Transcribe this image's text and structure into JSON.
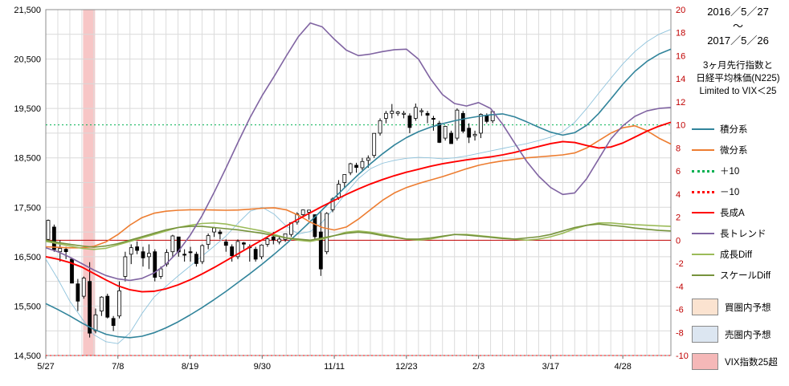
{
  "title_block": {
    "date_from": "2016／5／27",
    "tilde": "～",
    "date_to": "2017／5／26",
    "subtitle_line1": "3ヶ月先行指数と",
    "subtitle_line2": "日経平均株価(N225)",
    "subtitle_line3": "Limited to  VIX＜25"
  },
  "legend": {
    "line_items": [
      {
        "label": "積分系",
        "color": "#31849b",
        "style": "solid"
      },
      {
        "label": "微分系",
        "color": "#ed7d31",
        "style": "solid"
      },
      {
        "label": "＋10",
        "color": "#00b050",
        "style": "dotted"
      },
      {
        "label": "－10",
        "color": "#ff0000",
        "style": "dotted"
      },
      {
        "label": "長成A",
        "color": "#ff0000",
        "style": "solid"
      },
      {
        "label": "長トレンド",
        "color": "#8064a2",
        "style": "solid"
      },
      {
        "label": "成長Diff",
        "color": "#9bbb59",
        "style": "solid"
      },
      {
        "label": "スケールDiff",
        "color": "#76933c",
        "style": "solid"
      }
    ],
    "box_items": [
      {
        "label": "買圏内予想",
        "fill": "#fbe3d0"
      },
      {
        "label": "売圏内予想",
        "fill": "#dce6f1"
      },
      {
        "label": "VIX指数25超",
        "fill": "#f5b8b8"
      }
    ]
  },
  "chart_data": {
    "type": "line+candlestick",
    "title": "3ヶ月先行指数と日経平均株価(N225)",
    "subtitle": "Limited to  VIX＜25",
    "period_from": "2016／5／27",
    "period_to": "2017／5／26",
    "left_axis": {
      "min": 14500,
      "max": 21500,
      "grid_step": 500,
      "label_step": 1000,
      "labels": [
        "21,500",
        "20,500",
        "19,500",
        "18,500",
        "17,500",
        "16,500",
        "15,500",
        "14,500"
      ]
    },
    "right_axis": {
      "min": -10,
      "max": 20,
      "label_step": 2,
      "color": "#c00000",
      "labels": [
        "20",
        "18",
        "16",
        "14",
        "12",
        "10",
        "8",
        "6",
        "4",
        "2",
        "0",
        "-2",
        "-4",
        "-6",
        "-8",
        "-10"
      ]
    },
    "x_axis": {
      "weeks_total": 52,
      "ticks": [
        {
          "week": 0,
          "label": "5/27"
        },
        {
          "week": 6,
          "label": "7/8"
        },
        {
          "week": 12,
          "label": "8/19"
        },
        {
          "week": 18,
          "label": "9/30"
        },
        {
          "week": 24,
          "label": "11/11"
        },
        {
          "week": 30,
          "label": "12/23"
        },
        {
          "week": 36,
          "label": "2/3"
        },
        {
          "week": 42,
          "label": "3/17"
        },
        {
          "week": 48,
          "label": "4/28"
        }
      ]
    },
    "ref_lines": [
      {
        "label": "0",
        "value": 0,
        "color": "#c00000",
        "dotted": false
      },
      {
        "label": "＋10",
        "value": 10,
        "color": "#00b050",
        "dotted": true
      },
      {
        "label": "－10",
        "value": -10,
        "color": "#ff0000",
        "dotted": true
      }
    ],
    "vix_band": {
      "label": "VIX指数25超",
      "from_week": 3.1,
      "to_week": 4.1,
      "color": "#f5b8b8"
    },
    "candles": {
      "name": "日経平均株価(N225)",
      "axis": "left",
      "start_week": 0.2,
      "week_step": 0.493,
      "ohlc": [
        [
          16850,
          17251,
          16800,
          17235
        ],
        [
          17100,
          17150,
          16600,
          16642
        ],
        [
          16600,
          16830,
          16400,
          16668
        ],
        [
          16650,
          16700,
          16450,
          16601
        ],
        [
          16450,
          16470,
          15960,
          15965
        ],
        [
          15950,
          16050,
          15400,
          15600
        ],
        [
          15700,
          16100,
          15650,
          16066
        ],
        [
          16000,
          16389,
          14864,
          14952
        ],
        [
          15000,
          15450,
          14950,
          15323
        ],
        [
          15400,
          15700,
          15300,
          15682
        ],
        [
          15700,
          15750,
          15250,
          15276
        ],
        [
          15250,
          15300,
          14995,
          15107
        ],
        [
          15300,
          16000,
          15250,
          15809
        ],
        [
          16100,
          16600,
          16000,
          16498
        ],
        [
          16550,
          16750,
          16350,
          16682
        ],
        [
          16700,
          16810,
          16550,
          16627
        ],
        [
          16600,
          16700,
          16300,
          16476
        ],
        [
          16500,
          16750,
          16250,
          16569
        ],
        [
          16600,
          16650,
          16000,
          16083
        ],
        [
          16100,
          16300,
          16050,
          16254
        ],
        [
          16350,
          16650,
          16300,
          16585
        ],
        [
          16600,
          16943,
          16500,
          16920
        ],
        [
          16900,
          16900,
          16500,
          16597
        ],
        [
          16550,
          16650,
          16400,
          16546
        ],
        [
          16600,
          16700,
          16400,
          16597
        ],
        [
          16550,
          16600,
          16300,
          16361
        ],
        [
          16400,
          16750,
          16350,
          16725
        ],
        [
          16750,
          16970,
          16650,
          16926
        ],
        [
          17000,
          17100,
          16900,
          17081
        ],
        [
          17000,
          17050,
          16850,
          16966
        ],
        [
          16800,
          16850,
          16600,
          16729
        ],
        [
          16700,
          16750,
          16400,
          16519
        ],
        [
          16500,
          16850,
          16450,
          16808
        ],
        [
          16780,
          16800,
          16650,
          16754
        ],
        [
          16700,
          16750,
          16400,
          16683
        ],
        [
          16650,
          16700,
          16400,
          16450
        ],
        [
          16500,
          16750,
          16450,
          16736
        ],
        [
          16750,
          16900,
          16700,
          16860
        ],
        [
          16900,
          17000,
          16750,
          16840
        ],
        [
          16800,
          16900,
          16750,
          16856
        ],
        [
          16850,
          16960,
          16800,
          16963
        ],
        [
          16950,
          17200,
          16900,
          17185
        ],
        [
          17200,
          17400,
          17150,
          17365
        ],
        [
          17350,
          17450,
          17300,
          17446
        ],
        [
          17400,
          17450,
          17250,
          17442
        ],
        [
          17350,
          17350,
          16850,
          16905
        ],
        [
          17000,
          17400,
          16111,
          16252
        ],
        [
          16600,
          17400,
          16550,
          17375
        ],
        [
          17450,
          17700,
          17400,
          17668
        ],
        [
          17700,
          18050,
          17650,
          17967
        ],
        [
          18000,
          18163,
          17900,
          18163
        ],
        [
          18200,
          18400,
          18150,
          18381
        ],
        [
          18350,
          18400,
          18200,
          18307
        ],
        [
          18300,
          18500,
          18250,
          18426
        ],
        [
          18450,
          18550,
          18300,
          18496
        ],
        [
          18550,
          19000,
          18500,
          18996
        ],
        [
          19000,
          19300,
          18950,
          19254
        ],
        [
          19300,
          19450,
          19200,
          19401
        ],
        [
          19400,
          19590,
          19300,
          19444
        ],
        [
          19400,
          19450,
          19350,
          19428
        ],
        [
          19400,
          19450,
          19300,
          19402
        ],
        [
          19350,
          19400,
          19000,
          19114
        ],
        [
          19300,
          19600,
          19250,
          19520
        ],
        [
          19450,
          19500,
          19350,
          19454
        ],
        [
          19400,
          19450,
          19200,
          19364
        ],
        [
          19300,
          19350,
          19050,
          19287
        ],
        [
          19200,
          19250,
          18800,
          18813
        ],
        [
          18900,
          19150,
          18850,
          19138
        ],
        [
          19000,
          19050,
          18787,
          18788
        ],
        [
          18900,
          19500,
          18850,
          19467
        ],
        [
          19400,
          19450,
          19000,
          19041
        ],
        [
          19100,
          19200,
          18800,
          18918
        ],
        [
          18950,
          19050,
          18850,
          18977
        ],
        [
          19000,
          19400,
          18900,
          19379
        ],
        [
          19350,
          19400,
          19200,
          19238
        ],
        [
          19250,
          19440,
          19200,
          19437
        ]
      ]
    },
    "series": [
      {
        "id": "leading-thin-line",
        "name": "先行線(水色細線)",
        "axis": "left",
        "color": "#8fc3dc",
        "width": 0.9,
        "behind_candles": true,
        "values": [
          16450,
          16050,
          15600,
          15250,
          14920,
          14780,
          14740,
          14960,
          15350,
          15680,
          15900,
          16110,
          16310,
          16510,
          16710,
          16920,
          17180,
          17420,
          17500,
          17360,
          17120,
          16960,
          17010,
          17200,
          17490,
          17790,
          18080,
          18280,
          18390,
          18450,
          18490,
          18510,
          18500,
          18480,
          18500,
          18540,
          18590,
          18640,
          18690,
          18740,
          18790,
          18850,
          18920,
          19030,
          19220,
          19500,
          19810,
          20110,
          20400,
          20650,
          20850,
          21000,
          21100
        ]
      },
      {
        "id": "integral-line",
        "name": "積分系",
        "axis": "left",
        "color": "#31849b",
        "width": 1.6,
        "behind_candles": false,
        "values": [
          15550,
          15430,
          15300,
          15160,
          15030,
          14930,
          14880,
          14860,
          14890,
          14960,
          15060,
          15180,
          15320,
          15470,
          15630,
          15800,
          15980,
          16160,
          16350,
          16550,
          16760,
          16980,
          17210,
          17450,
          17690,
          17930,
          18160,
          18380,
          18580,
          18760,
          18910,
          19030,
          19120,
          19190,
          19250,
          19300,
          19340,
          19370,
          19390,
          19330,
          19230,
          19120,
          19020,
          18960,
          19010,
          19160,
          19400,
          19690,
          19990,
          20250,
          20450,
          20600,
          20700
        ]
      },
      {
        "id": "differential-line",
        "name": "微分系",
        "axis": "left",
        "color": "#ed7d31",
        "width": 1.6,
        "behind_candles": false,
        "values": [
          16700,
          16690,
          16680,
          16680,
          16710,
          16800,
          16950,
          17140,
          17290,
          17380,
          17420,
          17440,
          17450,
          17450,
          17445,
          17440,
          17445,
          17460,
          17480,
          17490,
          17450,
          17340,
          17200,
          17090,
          17040,
          17100,
          17260,
          17450,
          17640,
          17790,
          17900,
          17980,
          18050,
          18120,
          18200,
          18280,
          18350,
          18400,
          18440,
          18470,
          18500,
          18520,
          18540,
          18560,
          18600,
          18700,
          18850,
          19000,
          19110,
          19150,
          19050,
          18900,
          18780
        ]
      },
      {
        "id": "growth-diff-line",
        "name": "成長Diff",
        "axis": "right",
        "color": "#9bbb59",
        "width": 1.6,
        "behind_candles": false,
        "values": [
          -0.1,
          -0.3,
          -0.5,
          -0.7,
          -0.8,
          -0.7,
          -0.4,
          -0.1,
          0.2,
          0.5,
          0.8,
          1.1,
          1.3,
          1.45,
          1.5,
          1.4,
          1.2,
          1.0,
          0.8,
          0.5,
          0.2,
          0.0,
          -0.1,
          0.1,
          0.4,
          0.7,
          0.8,
          0.7,
          0.5,
          0.3,
          0.1,
          0.0,
          0.1,
          0.3,
          0.5,
          0.5,
          0.4,
          0.3,
          0.2,
          0.1,
          0.0,
          0.1,
          0.3,
          0.6,
          1.0,
          1.3,
          1.5,
          1.5,
          1.4,
          1.35,
          1.3,
          1.25,
          1.2
        ]
      },
      {
        "id": "scale-diff-line",
        "name": "スケールDiff",
        "axis": "right",
        "color": "#76933c",
        "width": 1.6,
        "behind_candles": false,
        "values": [
          0.0,
          -0.2,
          -0.35,
          -0.5,
          -0.6,
          -0.5,
          -0.3,
          0.0,
          0.3,
          0.6,
          0.9,
          1.1,
          1.2,
          1.2,
          1.1,
          1.0,
          0.9,
          0.75,
          0.6,
          0.4,
          0.2,
          0.1,
          0.0,
          0.2,
          0.4,
          0.6,
          0.7,
          0.6,
          0.4,
          0.25,
          0.1,
          0.1,
          0.2,
          0.35,
          0.5,
          0.45,
          0.35,
          0.25,
          0.15,
          0.1,
          0.2,
          0.3,
          0.5,
          0.8,
          1.1,
          1.3,
          1.4,
          1.3,
          1.2,
          1.05,
          0.95,
          0.85,
          0.8
        ]
      },
      {
        "id": "chosei-a-line",
        "name": "長成A",
        "axis": "left",
        "color": "#ff0000",
        "width": 1.9,
        "behind_candles": false,
        "values": [
          16500,
          16450,
          16380,
          16290,
          16160,
          16030,
          15910,
          15830,
          15790,
          15800,
          15850,
          15930,
          16030,
          16150,
          16280,
          16420,
          16560,
          16700,
          16840,
          16980,
          17120,
          17260,
          17390,
          17520,
          17640,
          17760,
          17870,
          17970,
          18060,
          18140,
          18210,
          18270,
          18330,
          18380,
          18420,
          18460,
          18490,
          18520,
          18560,
          18610,
          18670,
          18730,
          18790,
          18830,
          18810,
          18750,
          18700,
          18720,
          18800,
          18920,
          19040,
          19140,
          19220
        ]
      },
      {
        "id": "long-trend-line",
        "name": "長トレンド",
        "axis": "left",
        "color": "#8064a2",
        "width": 1.6,
        "behind_candles": false,
        "values": [
          16680,
          16600,
          16490,
          16360,
          16230,
          16120,
          16050,
          16020,
          16060,
          16170,
          16350,
          16600,
          16930,
          17330,
          17800,
          18300,
          18820,
          19320,
          19760,
          20150,
          20560,
          20950,
          21230,
          21150,
          20900,
          20680,
          20570,
          20600,
          20650,
          20690,
          20700,
          20500,
          20100,
          19780,
          19600,
          19550,
          19620,
          19500,
          19180,
          18800,
          18430,
          18130,
          17900,
          17760,
          17790,
          18080,
          18480,
          18880,
          19150,
          19340,
          19450,
          19500,
          19520
        ]
      }
    ]
  }
}
